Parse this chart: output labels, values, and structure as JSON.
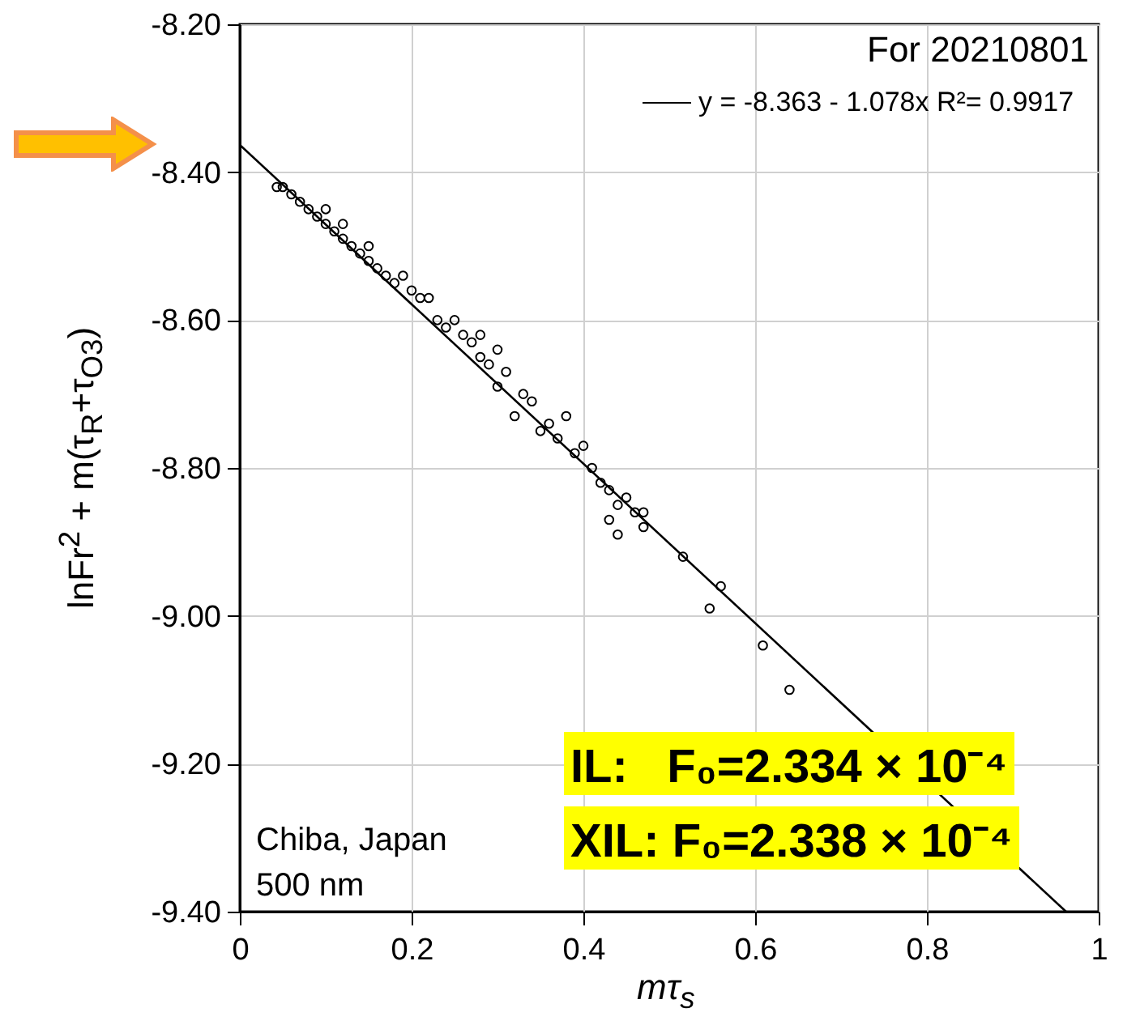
{
  "chart_data": {
    "type": "scatter",
    "xlabel": "mτ$_{s}$",
    "ylabel": "lnFr$^{2}$ + m(τ$_{R}$+τ$_{O3}$)",
    "legend_title": "For 20210801",
    "legend": "top right",
    "grid": true,
    "xlim": [
      0,
      1
    ],
    "xticks": [
      0,
      0.2,
      0.4,
      0.6,
      0.8,
      1
    ],
    "ylim": [
      -9.4,
      -8.2
    ],
    "yticks": [
      {
        "value": -9.4,
        "label": "-9.40"
      },
      {
        "value": -9.2,
        "label": "-9.20"
      },
      {
        "value": -9.0,
        "label": "-9.00"
      },
      {
        "value": -8.8,
        "label": "-8.80"
      },
      {
        "value": -8.6,
        "label": "-8.60"
      },
      {
        "value": -8.4,
        "label": "-8.40"
      },
      {
        "value": -8.2,
        "label": "-8.20"
      }
    ],
    "annotations": [
      "Chiba, Japan",
      "500 nm",
      "IL:   F₀=2.334 × 10⁻⁴",
      "XIL: F₀=2.338 × 10⁻⁴"
    ],
    "series": [
      {
        "marker": "circle",
        "color": "#000000",
        "x": [
          0.043,
          0.05,
          0.06,
          0.07,
          0.08,
          0.09,
          0.1,
          0.1,
          0.11,
          0.12,
          0.12,
          0.13,
          0.14,
          0.15,
          0.15,
          0.16,
          0.17,
          0.18,
          0.19,
          0.2,
          0.21,
          0.22,
          0.23,
          0.24,
          0.25,
          0.26,
          0.27,
          0.28,
          0.28,
          0.29,
          0.3,
          0.3,
          0.31,
          0.32,
          0.33,
          0.34,
          0.35,
          0.36,
          0.37,
          0.38,
          0.39,
          0.4,
          0.41,
          0.42,
          0.43,
          0.43,
          0.44,
          0.45,
          0.46,
          0.47,
          0.44,
          0.47,
          0.516,
          0.547,
          0.56,
          0.609,
          0.64
        ],
        "values": [
          -8.42,
          -8.42,
          -8.43,
          -8.44,
          -8.45,
          -8.46,
          -8.47,
          -8.45,
          -8.48,
          -8.49,
          -8.47,
          -8.5,
          -8.51,
          -8.5,
          -8.52,
          -8.53,
          -8.54,
          -8.55,
          -8.54,
          -8.56,
          -8.57,
          -8.57,
          -8.6,
          -8.61,
          -8.6,
          -8.62,
          -8.63,
          -8.65,
          -8.62,
          -8.66,
          -8.64,
          -8.69,
          -8.67,
          -8.73,
          -8.7,
          -8.71,
          -8.75,
          -8.74,
          -8.76,
          -8.73,
          -8.78,
          -8.77,
          -8.8,
          -8.82,
          -8.83,
          -8.87,
          -8.85,
          -8.84,
          -8.86,
          -8.88,
          -8.89,
          -8.86,
          -8.92,
          -8.99,
          -8.96,
          -9.04,
          -9.1
        ]
      },
      {
        "type": "line",
        "name": "y = -8.363 - 1.078x   R²= 0.9917",
        "color": "#000000",
        "x": [
          0,
          0.962
        ],
        "values": [
          -8.363,
          -9.4
        ]
      }
    ]
  }
}
